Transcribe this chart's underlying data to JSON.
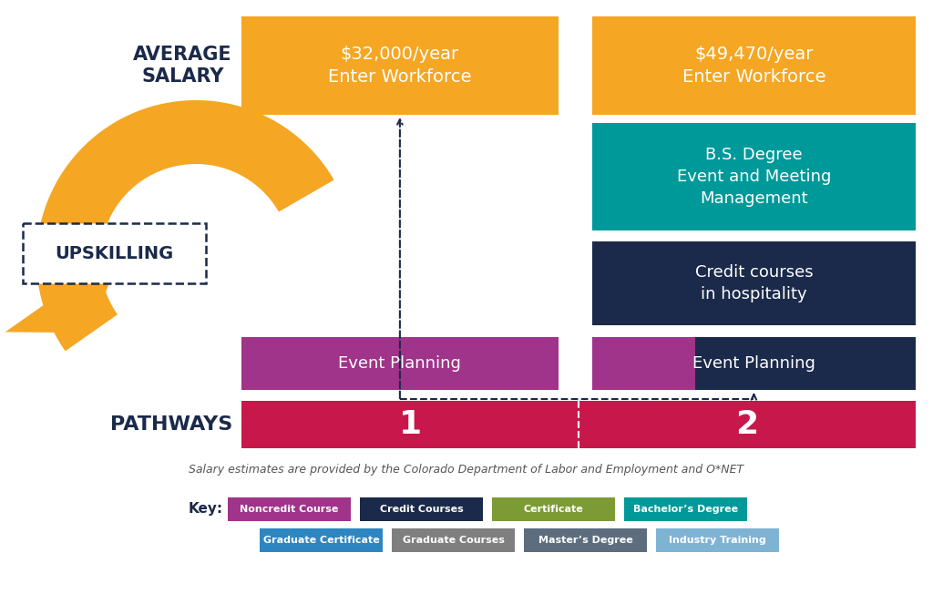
{
  "bg_color": "#ffffff",
  "orange": "#F5A623",
  "teal": "#009999",
  "navy": "#1B2A4A",
  "purple": "#A0338A",
  "red": "#C8174A",
  "blue_cert": "#2E86C1",
  "gray": "#7F7F7F",
  "dark_gray": "#5D6D7E",
  "light_blue": "#7FB3D3",
  "olive": "#7D9B35",
  "avg_salary_text": "AVERAGE\nSALARY",
  "upskilling_text": "UPSKILLING",
  "pathways_text": "PATHWAYS",
  "salary1_line1": "$32,000/year",
  "salary1_line2": "Enter Workforce",
  "salary2_line1": "$49,470/year",
  "salary2_line2": "Enter Workforce",
  "bs_degree_text": "B.S. Degree\nEvent and Meeting\nManagement",
  "credit_courses_text": "Credit courses\nin hospitality",
  "event_planning1": "Event Planning",
  "event_planning2": "Event Planning",
  "pathway1_num": "1",
  "pathway2_num": "2",
  "footnote": "Salary estimates are provided by the Colorado Department of Labor and Employment and O*NET",
  "key_label": "Key:",
  "key_items_row1": [
    "Noncredit Course",
    "Credit Courses",
    "Certificate",
    "Bachelor’s Degree"
  ],
  "key_colors_row1": [
    "#A0338A",
    "#1B2A4A",
    "#7D9B35",
    "#009999"
  ],
  "key_items_row2": [
    "Graduate Certificate",
    "Graduate Courses",
    "Master’s Degree",
    "Industry Training"
  ],
  "key_colors_row2": [
    "#2E86C1",
    "#7F7F7F",
    "#5D6D7E",
    "#7FB3D3"
  ]
}
